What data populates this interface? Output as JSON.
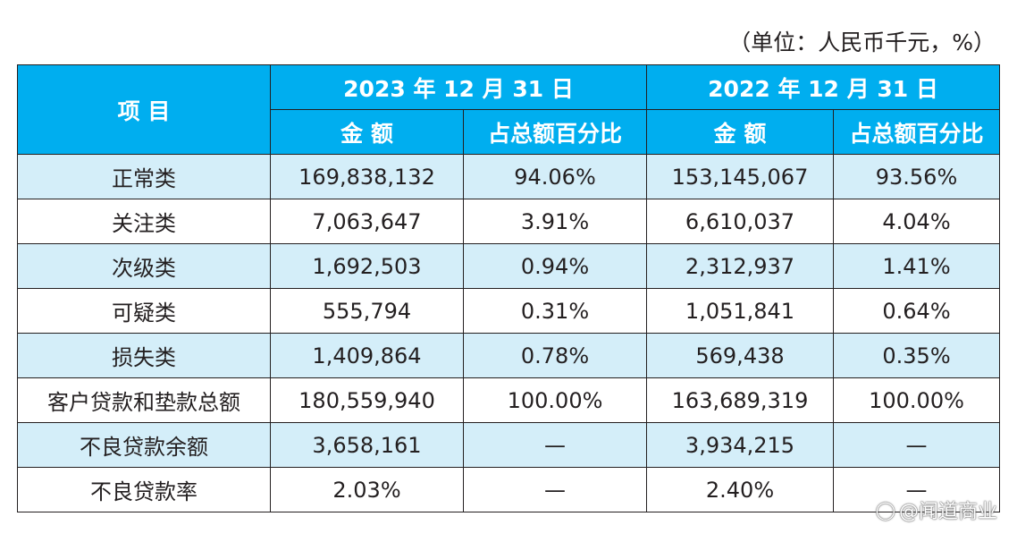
{
  "unit_note": "（单位：人民币千元，%）",
  "headers": {
    "item": "项 目",
    "period_2023": "2023 年 12 月 31 日",
    "period_2022": "2022 年 12 月 31 日",
    "amount": "金 额",
    "percentage": "占总额百分比"
  },
  "rows": [
    {
      "item": "正常类",
      "amount_2023": "169,838,132",
      "pct_2023": "94.06%",
      "amount_2022": "153,145,067",
      "pct_2022": "93.56%"
    },
    {
      "item": "关注类",
      "amount_2023": "7,063,647",
      "pct_2023": "3.91%",
      "amount_2022": "6,610,037",
      "pct_2022": "4.04%"
    },
    {
      "item": "次级类",
      "amount_2023": "1,692,503",
      "pct_2023": "0.94%",
      "amount_2022": "2,312,937",
      "pct_2022": "1.41%"
    },
    {
      "item": "可疑类",
      "amount_2023": "555,794",
      "pct_2023": "0.31%",
      "amount_2022": "1,051,841",
      "pct_2022": "0.64%"
    },
    {
      "item": "损失类",
      "amount_2023": "1,409,864",
      "pct_2023": "0.78%",
      "amount_2022": "569,438",
      "pct_2022": "0.35%"
    },
    {
      "item": "客户贷款和垫款总额",
      "amount_2023": "180,559,940",
      "pct_2023": "100.00%",
      "amount_2022": "163,689,319",
      "pct_2022": "100.00%"
    },
    {
      "item": "不良贷款余额",
      "amount_2023": "3,658,161",
      "pct_2023": "—",
      "amount_2022": "3,934,215",
      "pct_2022": "—"
    },
    {
      "item": "不良贷款率",
      "amount_2023": "2.03%",
      "pct_2023": "—",
      "amount_2022": "2.40%",
      "pct_2022": "—"
    }
  ],
  "watermark": {
    "icon": "wechat-icon",
    "text": "@闻道商业"
  }
}
